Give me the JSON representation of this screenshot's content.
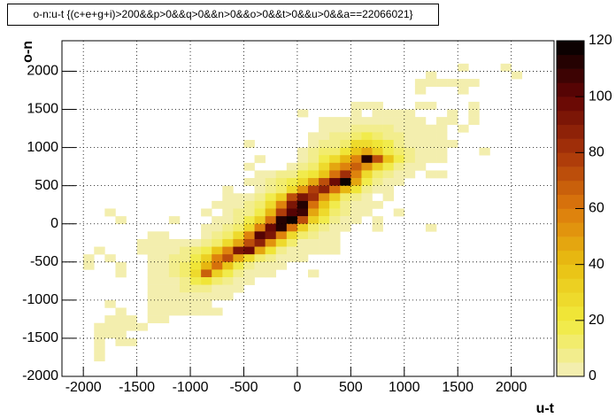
{
  "chart_data": {
    "type": "heatmap",
    "title": "o-n:u-t {(c+e+g+i)>200&&p>0&&q>0&&n>0&&o>0&&t>0&&u>0&&a==22066021}",
    "x_label": "u-t",
    "y_label": "o-n",
    "xlim": [
      -2200,
      2400
    ],
    "ylim": [
      -2000,
      2400
    ],
    "zlim": [
      0,
      120
    ],
    "xticks": [
      -2000,
      -1500,
      -1000,
      -500,
      0,
      500,
      1000,
      1500,
      2000
    ],
    "yticks": [
      -2000,
      -1500,
      -1000,
      -500,
      0,
      500,
      1000,
      1500,
      2000
    ],
    "zticks": [
      0,
      20,
      40,
      60,
      80,
      100,
      120
    ],
    "grid": true,
    "palette": [
      "#f3efbe",
      "#f1ea3c",
      "#e9c012",
      "#dc7a0c",
      "#a8340a",
      "#620404",
      "#000000"
    ],
    "rows": [
      {
        "y": 2000,
        "x": [
          1500,
          1900
        ],
        "values": [
          1,
          1
        ]
      },
      {
        "y": 1900,
        "x": [
          1200,
          2000
        ],
        "values": [
          1,
          1
        ]
      },
      {
        "y": 1800,
        "x": [
          1100,
          1200,
          1300,
          1400,
          1500,
          1600
        ],
        "values": [
          1,
          1,
          1,
          1,
          1,
          1
        ]
      },
      {
        "y": 1700,
        "x": [
          1100,
          1500
        ],
        "values": [
          1,
          1
        ]
      },
      {
        "y": 1500,
        "x": [
          500,
          600,
          700,
          1100,
          1200,
          1600
        ],
        "values": [
          1,
          2,
          1,
          1,
          1,
          1
        ]
      },
      {
        "y": 1400,
        "x": [
          0,
          500,
          700,
          800,
          900,
          1000,
          1400,
          1600
        ],
        "values": [
          1,
          1,
          2,
          1,
          1,
          1,
          1,
          1
        ]
      },
      {
        "y": 1300,
        "x": [
          200,
          300,
          400,
          500,
          600,
          700,
          800,
          900,
          1000,
          1100,
          1300,
          1400,
          1600
        ],
        "values": [
          1,
          1,
          2,
          3,
          3,
          4,
          3,
          2,
          1,
          1,
          1,
          1,
          1
        ]
      },
      {
        "y": 1200,
        "x": [
          200,
          300,
          400,
          500,
          600,
          700,
          800,
          900,
          1000,
          1100,
          1200,
          1300,
          1500
        ],
        "values": [
          2,
          2,
          3,
          5,
          8,
          6,
          5,
          3,
          3,
          1,
          1,
          1,
          1
        ]
      },
      {
        "y": 1100,
        "x": [
          100,
          200,
          300,
          400,
          500,
          600,
          700,
          800,
          900,
          1000,
          1100,
          1200,
          1300
        ],
        "values": [
          2,
          3,
          5,
          6,
          12,
          15,
          12,
          8,
          5,
          3,
          2,
          1,
          1
        ]
      },
      {
        "y": 1000,
        "x": [
          -500,
          100,
          200,
          300,
          400,
          500,
          600,
          700,
          800,
          900,
          1000,
          1100,
          1200,
          1300,
          1400
        ],
        "values": [
          1,
          3,
          6,
          8,
          12,
          25,
          28,
          22,
          15,
          8,
          4,
          2,
          1,
          1,
          1
        ]
      },
      {
        "y": 900,
        "x": [
          0,
          100,
          200,
          300,
          400,
          500,
          600,
          700,
          800,
          900,
          1000,
          1100,
          1200,
          1300,
          1700
        ],
        "values": [
          2,
          5,
          10,
          14,
          20,
          35,
          45,
          30,
          18,
          10,
          5,
          2,
          1,
          1,
          1
        ]
      },
      {
        "y": 800,
        "x": [
          -400,
          0,
          100,
          200,
          300,
          400,
          500,
          600,
          700,
          800,
          900,
          1000,
          1100,
          1200,
          1300
        ],
        "values": [
          1,
          4,
          8,
          15,
          25,
          40,
          55,
          110,
          70,
          35,
          18,
          6,
          3,
          1,
          1
        ]
      },
      {
        "y": 700,
        "x": [
          -500,
          -100,
          0,
          100,
          200,
          300,
          400,
          500,
          600,
          700,
          800,
          900,
          1000,
          1100
        ],
        "values": [
          1,
          3,
          6,
          12,
          25,
          45,
          55,
          65,
          50,
          30,
          15,
          8,
          3,
          1
        ]
      },
      {
        "y": 600,
        "x": [
          -400,
          -300,
          -200,
          -100,
          0,
          100,
          200,
          300,
          400,
          500,
          600,
          700,
          800,
          900,
          1000,
          1200,
          1300
        ],
        "values": [
          2,
          3,
          5,
          8,
          15,
          22,
          35,
          60,
          80,
          55,
          25,
          12,
          6,
          3,
          2,
          1,
          1
        ]
      },
      {
        "y": 500,
        "x": [
          -500,
          -400,
          -300,
          -200,
          -100,
          0,
          100,
          200,
          300,
          400,
          500,
          600,
          700,
          800,
          900
        ],
        "values": [
          1,
          3,
          5,
          10,
          15,
          25,
          45,
          70,
          95,
          120,
          45,
          18,
          8,
          3,
          1
        ]
      },
      {
        "y": 400,
        "x": [
          -700,
          -400,
          -300,
          -200,
          -100,
          0,
          100,
          200,
          300,
          400,
          500,
          600,
          700,
          800
        ],
        "values": [
          1,
          3,
          6,
          12,
          25,
          50,
          75,
          85,
          60,
          40,
          20,
          8,
          3,
          1
        ]
      },
      {
        "y": 300,
        "x": [
          -700,
          -600,
          -500,
          -400,
          -300,
          -200,
          -100,
          0,
          100,
          200,
          300,
          400,
          500,
          600,
          800
        ],
        "values": [
          1,
          2,
          4,
          8,
          15,
          30,
          70,
          90,
          80,
          50,
          30,
          12,
          6,
          3,
          1
        ]
      },
      {
        "y": 200,
        "x": [
          -800,
          -700,
          -600,
          -500,
          -400,
          -300,
          -200,
          -100,
          0,
          100,
          200,
          300,
          400,
          500,
          600,
          700
        ],
        "values": [
          1,
          2,
          4,
          6,
          12,
          25,
          55,
          90,
          110,
          60,
          35,
          18,
          8,
          3,
          2,
          1
        ]
      },
      {
        "y": 100,
        "x": [
          -1800,
          -900,
          -700,
          -600,
          -500,
          -400,
          -300,
          -200,
          -100,
          0,
          100,
          200,
          300,
          400,
          500,
          600,
          900
        ],
        "values": [
          1,
          1,
          3,
          5,
          8,
          18,
          40,
          75,
          100,
          105,
          45,
          25,
          10,
          5,
          2,
          1,
          1
        ]
      },
      {
        "y": 0,
        "x": [
          -1700,
          -1200,
          -800,
          -700,
          -600,
          -500,
          -400,
          -300,
          -200,
          -100,
          0,
          100,
          200,
          300,
          400,
          500,
          700
        ],
        "values": [
          1,
          1,
          2,
          4,
          8,
          15,
          30,
          60,
          110,
          115,
          70,
          30,
          15,
          6,
          3,
          2,
          1
        ]
      },
      {
        "y": -100,
        "x": [
          -900,
          -800,
          -700,
          -600,
          -500,
          -400,
          -300,
          -200,
          -100,
          0,
          100,
          200,
          300,
          400,
          700,
          1200
        ],
        "values": [
          1,
          3,
          6,
          12,
          28,
          55,
          95,
          110,
          60,
          30,
          12,
          5,
          2,
          1,
          1,
          1
        ]
      },
      {
        "y": -200,
        "x": [
          -1400,
          -1300,
          -900,
          -800,
          -700,
          -600,
          -500,
          -400,
          -300,
          -200,
          -100,
          0,
          100,
          200,
          300
        ],
        "values": [
          1,
          1,
          2,
          5,
          10,
          25,
          55,
          100,
          90,
          55,
          25,
          12,
          5,
          2,
          1
        ]
      },
      {
        "y": -300,
        "x": [
          -1500,
          -1400,
          -1300,
          -1200,
          -1100,
          -1000,
          -900,
          -800,
          -700,
          -600,
          -500,
          -400,
          -300,
          -200,
          -100,
          0,
          100,
          200,
          300
        ],
        "values": [
          1,
          1,
          2,
          2,
          3,
          4,
          6,
          12,
          25,
          45,
          70,
          85,
          50,
          25,
          10,
          4,
          2,
          1,
          1
        ]
      },
      {
        "y": -400,
        "x": [
          -1900,
          -1500,
          -1400,
          -1300,
          -1200,
          -1100,
          -1000,
          -900,
          -800,
          -700,
          -600,
          -500,
          -400,
          -300,
          -200,
          -100,
          0,
          100,
          200,
          300
        ],
        "values": [
          1,
          1,
          2,
          3,
          4,
          6,
          10,
          18,
          35,
          55,
          90,
          95,
          45,
          20,
          8,
          3,
          2,
          1,
          1,
          1
        ]
      },
      {
        "y": -500,
        "x": [
          -2000,
          -1800,
          -1400,
          -1300,
          -1200,
          -1100,
          -1000,
          -900,
          -800,
          -700,
          -600,
          -500,
          -400,
          -300,
          -200,
          -100,
          0
        ],
        "values": [
          1,
          1,
          2,
          3,
          5,
          8,
          15,
          30,
          55,
          70,
          45,
          25,
          12,
          6,
          3,
          2,
          1
        ]
      },
      {
        "y": -600,
        "x": [
          -2000,
          -1700,
          -1400,
          -1300,
          -1200,
          -1100,
          -1000,
          -900,
          -800,
          -700,
          -600,
          -500,
          -400,
          -300,
          -200
        ],
        "values": [
          1,
          1,
          2,
          3,
          5,
          10,
          20,
          40,
          60,
          35,
          18,
          8,
          4,
          2,
          1
        ]
      },
      {
        "y": -700,
        "x": [
          -1700,
          -1400,
          -1300,
          -1200,
          -1100,
          -1000,
          -900,
          -800,
          -700,
          -600,
          -500,
          -400,
          -300,
          100
        ],
        "values": [
          1,
          2,
          3,
          5,
          10,
          25,
          65,
          30,
          15,
          8,
          4,
          2,
          1,
          1
        ]
      },
      {
        "y": -800,
        "x": [
          -1400,
          -1300,
          -1200,
          -1100,
          -1000,
          -900,
          -800,
          -700,
          -600,
          -500
        ],
        "values": [
          2,
          3,
          4,
          8,
          15,
          20,
          12,
          6,
          3,
          1
        ]
      },
      {
        "y": -900,
        "x": [
          -1400,
          -1300,
          -1200,
          -1100,
          -1000,
          -900,
          -800,
          -700,
          -600
        ],
        "values": [
          1,
          2,
          3,
          5,
          8,
          6,
          4,
          2,
          1
        ]
      },
      {
        "y": -1000,
        "x": [
          -1400,
          -1300,
          -1200,
          -1100,
          -1000,
          -900,
          -800,
          -700
        ],
        "values": [
          1,
          2,
          2,
          3,
          4,
          3,
          2,
          1
        ]
      },
      {
        "y": -1100,
        "x": [
          -1800,
          -1400,
          -1300,
          -1200,
          -1100,
          -1000,
          -900
        ],
        "values": [
          1,
          1,
          1,
          2,
          2,
          2,
          1
        ]
      },
      {
        "y": -1200,
        "x": [
          -1700,
          -1400,
          -1300,
          -1200,
          -1100,
          -1000,
          -900,
          -800
        ],
        "values": [
          1,
          1,
          1,
          1,
          1,
          1,
          1,
          1
        ]
      },
      {
        "y": -1300,
        "x": [
          -1800,
          -1700,
          -1600,
          -1400,
          -1300
        ],
        "values": [
          1,
          1,
          1,
          1,
          1
        ]
      },
      {
        "y": -1400,
        "x": [
          -1900,
          -1800,
          -1700,
          -1600,
          -1500
        ],
        "values": [
          1,
          1,
          1,
          1,
          1
        ]
      },
      {
        "y": -1500,
        "x": [
          -1900,
          -1800,
          -1700
        ],
        "values": [
          1,
          1,
          1
        ]
      },
      {
        "y": -1600,
        "x": [
          -1900,
          -1700,
          -1600
        ],
        "values": [
          1,
          1,
          1
        ]
      },
      {
        "y": -1700,
        "x": [
          -1900
        ],
        "values": [
          1
        ]
      },
      {
        "y": -1800,
        "x": [
          -1900
        ],
        "values": [
          1
        ]
      }
    ]
  }
}
